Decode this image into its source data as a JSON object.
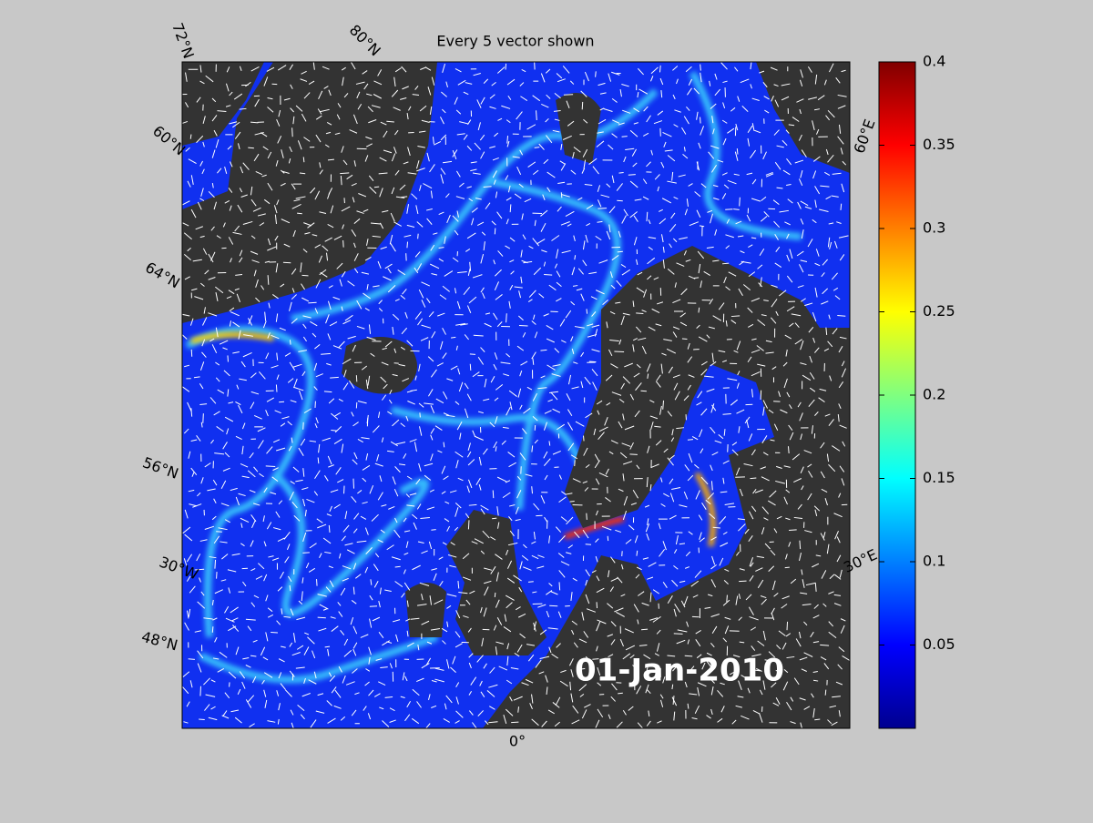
{
  "title": "Every 5 vector shown",
  "date": "01-Jan-2010",
  "map_labels": [
    "72°N",
    "80°N",
    "60°N",
    "64°N",
    "56°N",
    "30°W",
    "48°N",
    "0°",
    "30°E",
    "60°E"
  ],
  "colorbar": {
    "range": [
      0,
      0.4
    ],
    "ticks": [
      0.05,
      0.1,
      0.15,
      0.2,
      0.25,
      0.3,
      0.35,
      0.4
    ]
  }
}
